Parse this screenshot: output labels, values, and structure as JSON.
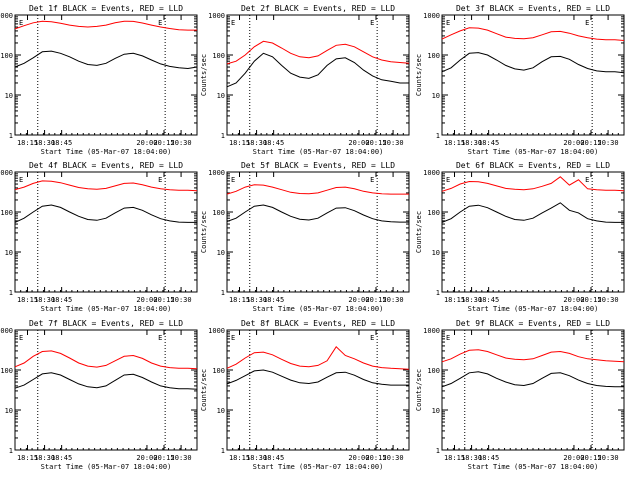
{
  "colors": {
    "events": "#000000",
    "lld": "#ff0000",
    "axes": "#000000",
    "background": "#ffffff"
  },
  "chart_data": [
    {
      "type": "line",
      "title": "Det 1f BLACK = Events, RED = LLD",
      "ylabel": "Counts/sec",
      "xlabel": "Start Time (05-Mar-07 18:04:00)",
      "y_scale": "log",
      "ylim": [
        1,
        1000
      ],
      "yticks": [
        "1",
        "10",
        "100",
        "1000"
      ],
      "x": [
        "18:04",
        "18:12",
        "18:20",
        "18:28",
        "18:36",
        "18:44",
        "18:52",
        "19:00",
        "19:08",
        "19:16",
        "19:24",
        "19:32",
        "19:40",
        "19:48",
        "19:56",
        "20:04",
        "20:12",
        "20:20",
        "20:28",
        "20:36",
        "20:44"
      ],
      "xticks": [
        "18:15",
        "18:30",
        "18:45",
        "20:00",
        "20:15",
        "20:30"
      ],
      "annotations": [
        "E",
        "E"
      ],
      "series": [
        {
          "values": [
            450,
            540,
            640,
            700,
            680,
            620,
            560,
            520,
            500,
            520,
            560,
            640,
            700,
            690,
            630,
            560,
            500,
            460,
            430,
            420,
            420
          ]
        },
        {
          "values": [
            50,
            62,
            85,
            120,
            125,
            110,
            90,
            70,
            58,
            55,
            62,
            82,
            105,
            110,
            95,
            75,
            60,
            52,
            48,
            46,
            50
          ]
        }
      ]
    },
    {
      "type": "line",
      "title": "Det 2f BLACK = Events, RED = LLD",
      "ylabel": "Counts/sec",
      "xlabel": "Start Time (05-Mar-07 18:04:00)",
      "y_scale": "log",
      "ylim": [
        1,
        1000
      ],
      "yticks": [
        "1",
        "10",
        "100",
        "1000"
      ],
      "x": [
        "18:04",
        "18:12",
        "18:20",
        "18:28",
        "18:36",
        "18:44",
        "18:52",
        "19:00",
        "19:08",
        "19:16",
        "19:24",
        "19:32",
        "19:40",
        "19:48",
        "19:56",
        "20:04",
        "20:12",
        "20:20",
        "20:28",
        "20:36",
        "20:44"
      ],
      "xticks": [
        "18:15",
        "18:30",
        "18:45",
        "20:00",
        "20:15",
        "20:30"
      ],
      "annotations": [
        "E",
        "E"
      ],
      "series": [
        {
          "values": [
            60,
            70,
            100,
            160,
            220,
            200,
            150,
            110,
            90,
            85,
            95,
            130,
            175,
            185,
            160,
            120,
            90,
            75,
            68,
            65,
            62
          ]
        },
        {
          "values": [
            16,
            20,
            35,
            70,
            110,
            90,
            55,
            35,
            28,
            26,
            32,
            55,
            80,
            85,
            65,
            42,
            30,
            24,
            22,
            20,
            20
          ]
        }
      ]
    },
    {
      "type": "line",
      "title": "Det 3f BLACK = Events, RED = LLD",
      "ylabel": "Counts/sec",
      "xlabel": "Start Time (05-Mar-07 18:04:00)",
      "y_scale": "log",
      "ylim": [
        1,
        1000
      ],
      "yticks": [
        "1",
        "10",
        "100",
        "1000"
      ],
      "x": [
        "18:04",
        "18:12",
        "18:20",
        "18:28",
        "18:36",
        "18:44",
        "18:52",
        "19:00",
        "19:08",
        "19:16",
        "19:24",
        "19:32",
        "19:40",
        "19:48",
        "19:56",
        "20:04",
        "20:12",
        "20:20",
        "20:28",
        "20:36",
        "20:44"
      ],
      "xticks": [
        "18:15",
        "18:30",
        "18:45",
        "20:00",
        "20:15",
        "20:30"
      ],
      "annotations": [
        "E",
        "E"
      ],
      "series": [
        {
          "values": [
            250,
            320,
            400,
            480,
            470,
            420,
            340,
            280,
            260,
            255,
            270,
            320,
            380,
            390,
            350,
            300,
            270,
            250,
            240,
            240,
            230
          ]
        },
        {
          "values": [
            38,
            48,
            75,
            110,
            115,
            100,
            75,
            55,
            45,
            42,
            48,
            68,
            90,
            92,
            78,
            58,
            46,
            40,
            38,
            38,
            36
          ]
        }
      ]
    },
    {
      "type": "line",
      "title": "Det 4f BLACK = Events, RED = LLD",
      "ylabel": "Counts/sec",
      "xlabel": "Start Time (05-Mar-07 18:04:00)",
      "y_scale": "log",
      "ylim": [
        1,
        1000
      ],
      "yticks": [
        "1",
        "10",
        "100",
        "1000"
      ],
      "x": [
        "18:04",
        "18:12",
        "18:20",
        "18:28",
        "18:36",
        "18:44",
        "18:52",
        "19:00",
        "19:08",
        "19:16",
        "19:24",
        "19:32",
        "19:40",
        "19:48",
        "19:56",
        "20:04",
        "20:12",
        "20:20",
        "20:28",
        "20:36",
        "20:44"
      ],
      "xticks": [
        "18:15",
        "18:30",
        "18:45",
        "20:00",
        "20:15",
        "20:30"
      ],
      "annotations": [
        "E",
        "E"
      ],
      "series": [
        {
          "values": [
            360,
            420,
            520,
            600,
            590,
            540,
            470,
            410,
            380,
            370,
            390,
            450,
            520,
            530,
            480,
            420,
            380,
            360,
            350,
            350,
            340
          ]
        },
        {
          "values": [
            55,
            70,
            100,
            140,
            150,
            130,
            100,
            78,
            65,
            62,
            70,
            95,
            125,
            130,
            110,
            85,
            68,
            60,
            56,
            55,
            55
          ]
        }
      ]
    },
    {
      "type": "line",
      "title": "Det 5f BLACK = Events, RED = LLD",
      "ylabel": "Counts/sec",
      "xlabel": "Start Time (05-Mar-07 18:04:00)",
      "y_scale": "log",
      "ylim": [
        1,
        1000
      ],
      "yticks": [
        "1",
        "10",
        "100",
        "1000"
      ],
      "x": [
        "18:04",
        "18:12",
        "18:20",
        "18:28",
        "18:36",
        "18:44",
        "18:52",
        "19:00",
        "19:08",
        "19:16",
        "19:24",
        "19:32",
        "19:40",
        "19:48",
        "19:56",
        "20:04",
        "20:12",
        "20:20",
        "20:28",
        "20:36",
        "20:44"
      ],
      "xticks": [
        "18:15",
        "18:30",
        "18:45",
        "20:00",
        "20:15",
        "20:30"
      ],
      "annotations": [
        "E",
        "E"
      ],
      "series": [
        {
          "values": [
            280,
            330,
            420,
            480,
            470,
            420,
            360,
            310,
            290,
            285,
            300,
            350,
            410,
            420,
            380,
            330,
            300,
            285,
            280,
            280,
            280
          ]
        },
        {
          "values": [
            58,
            70,
            100,
            140,
            150,
            130,
            100,
            78,
            66,
            63,
            70,
            95,
            125,
            128,
            108,
            84,
            68,
            60,
            57,
            56,
            56
          ]
        }
      ]
    },
    {
      "type": "line",
      "title": "Det 6f BLACK = Events, RED = LLD",
      "ylabel": "Counts/sec",
      "xlabel": "Start Time (05-Mar-07 18:04:00)",
      "y_scale": "log",
      "ylim": [
        1,
        1000
      ],
      "yticks": [
        "1",
        "10",
        "100",
        "1000"
      ],
      "x": [
        "18:04",
        "18:12",
        "18:20",
        "18:28",
        "18:36",
        "18:44",
        "18:52",
        "19:00",
        "19:08",
        "19:16",
        "19:24",
        "19:32",
        "19:40",
        "19:48",
        "19:56",
        "20:04",
        "20:12",
        "20:20",
        "20:28",
        "20:36",
        "20:44"
      ],
      "xticks": [
        "18:15",
        "18:30",
        "18:45",
        "20:00",
        "20:15",
        "20:30"
      ],
      "annotations": [
        "E",
        "E"
      ],
      "series": [
        {
          "values": [
            330,
            390,
            500,
            580,
            570,
            520,
            450,
            390,
            370,
            360,
            380,
            440,
            520,
            760,
            470,
            640,
            380,
            360,
            350,
            350,
            340
          ]
        },
        {
          "values": [
            55,
            68,
            100,
            140,
            148,
            128,
            100,
            78,
            65,
            62,
            70,
            95,
            125,
            170,
            110,
            95,
            68,
            60,
            56,
            55,
            55
          ]
        }
      ]
    },
    {
      "type": "line",
      "title": "Det 7f BLACK = Events, RED = LLD",
      "ylabel": "Counts/sec",
      "xlabel": "Start Time (05-Mar-07 18:04:00)",
      "y_scale": "log",
      "ylim": [
        1,
        1000
      ],
      "yticks": [
        "1",
        "10",
        "100",
        "1000"
      ],
      "x": [
        "18:04",
        "18:12",
        "18:20",
        "18:28",
        "18:36",
        "18:44",
        "18:52",
        "19:00",
        "19:08",
        "19:16",
        "19:24",
        "19:32",
        "19:40",
        "19:48",
        "19:56",
        "20:04",
        "20:12",
        "20:20",
        "20:28",
        "20:36",
        "20:44"
      ],
      "xticks": [
        "18:15",
        "18:30",
        "18:45",
        "20:00",
        "20:15",
        "20:30"
      ],
      "annotations": [
        "E",
        "E"
      ],
      "series": [
        {
          "values": [
            120,
            150,
            220,
            290,
            300,
            260,
            200,
            150,
            125,
            118,
            130,
            170,
            220,
            230,
            195,
            150,
            125,
            115,
            110,
            110,
            108
          ]
        },
        {
          "values": [
            35,
            42,
            58,
            80,
            85,
            75,
            58,
            45,
            38,
            36,
            40,
            55,
            75,
            78,
            65,
            50,
            40,
            36,
            34,
            34,
            33
          ]
        }
      ]
    },
    {
      "type": "line",
      "title": "Det 8f BLACK = Events, RED = LLD",
      "ylabel": "Counts/sec",
      "xlabel": "Start Time (05-Mar-07 18:04:00)",
      "y_scale": "log",
      "ylim": [
        1,
        1000
      ],
      "yticks": [
        "1",
        "10",
        "100",
        "1000"
      ],
      "x": [
        "18:04",
        "18:12",
        "18:20",
        "18:28",
        "18:36",
        "18:44",
        "18:52",
        "19:00",
        "19:08",
        "19:16",
        "19:24",
        "19:32",
        "19:40",
        "19:48",
        "19:56",
        "20:04",
        "20:12",
        "20:20",
        "20:28",
        "20:36",
        "20:44"
      ],
      "xticks": [
        "18:15",
        "18:30",
        "18:45",
        "20:00",
        "20:15",
        "20:30"
      ],
      "annotations": [
        "E",
        "E"
      ],
      "series": [
        {
          "values": [
            110,
            140,
            200,
            270,
            280,
            240,
            185,
            145,
            125,
            120,
            130,
            170,
            380,
            230,
            190,
            150,
            125,
            115,
            110,
            108,
            105
          ]
        },
        {
          "values": [
            45,
            55,
            72,
            95,
            100,
            88,
            70,
            56,
            48,
            46,
            50,
            66,
            85,
            88,
            74,
            58,
            48,
            44,
            42,
            42,
            42
          ]
        }
      ]
    },
    {
      "type": "line",
      "title": "Det 9f BLACK = Events, RED = LLD",
      "ylabel": "Counts/sec",
      "xlabel": "Start Time (05-Mar-07 18:04:00)",
      "y_scale": "log",
      "ylim": [
        1,
        1000
      ],
      "yticks": [
        "1",
        "10",
        "100",
        "1000"
      ],
      "x": [
        "18:04",
        "18:12",
        "18:20",
        "18:28",
        "18:36",
        "18:44",
        "18:52",
        "19:00",
        "19:08",
        "19:16",
        "19:24",
        "19:32",
        "19:40",
        "19:48",
        "19:56",
        "20:04",
        "20:12",
        "20:20",
        "20:28",
        "20:36",
        "20:44"
      ],
      "xticks": [
        "18:15",
        "18:30",
        "18:45",
        "20:00",
        "20:15",
        "20:30"
      ],
      "annotations": [
        "E",
        "E"
      ],
      "series": [
        {
          "values": [
            160,
            190,
            250,
            310,
            320,
            290,
            240,
            200,
            185,
            180,
            190,
            230,
            280,
            290,
            260,
            215,
            190,
            180,
            170,
            165,
            160
          ]
        },
        {
          "values": [
            38,
            46,
            62,
            85,
            90,
            80,
            62,
            50,
            43,
            41,
            46,
            62,
            82,
            85,
            72,
            56,
            46,
            41,
            39,
            38,
            38
          ]
        }
      ]
    }
  ]
}
